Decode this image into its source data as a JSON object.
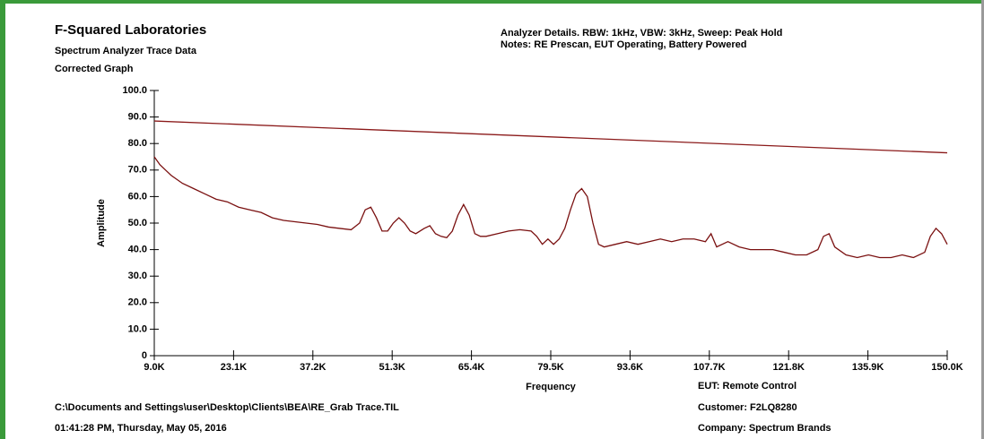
{
  "chart_data": {
    "type": "line",
    "title": "F-Squared Laboratories",
    "subtitle": "Spectrum Analyzer Trace Data",
    "subtitle2": "Corrected Graph",
    "details": "Analyzer Details.  RBW: 1kHz, VBW: 3kHz, Sweep: Peak Hold",
    "notes": "Notes:  RE Prescan, EUT Operating, Battery Powered",
    "xlabel": "Frequency",
    "ylabel": "Amplitude",
    "file": "C:\\Documents and Settings\\user\\Desktop\\Clients\\BEA\\RE_Grab Trace.TIL",
    "datetime": "01:41:28 PM, Thursday, May 05, 2016",
    "eut": "EUT: Remote Control",
    "customer": "Customer: F2LQ8280",
    "company": "Company: Spectrum Brands",
    "xlim": [
      9000,
      150000
    ],
    "ylim": [
      0,
      100
    ],
    "xticks": [
      {
        "value": 9000,
        "label": "9.0K"
      },
      {
        "value": 23100,
        "label": "23.1K"
      },
      {
        "value": 37200,
        "label": "37.2K"
      },
      {
        "value": 51300,
        "label": "51.3K"
      },
      {
        "value": 65400,
        "label": "65.4K"
      },
      {
        "value": 79500,
        "label": "79.5K"
      },
      {
        "value": 93600,
        "label": "93.6K"
      },
      {
        "value": 107700,
        "label": "107.7K"
      },
      {
        "value": 121800,
        "label": "121.8K"
      },
      {
        "value": 135900,
        "label": "135.9K"
      },
      {
        "value": 150000,
        "label": "150.0K"
      }
    ],
    "yticks": [
      0,
      {
        "value": 10,
        "label": "10.0"
      },
      {
        "value": 20,
        "label": "20.0"
      },
      {
        "value": 30,
        "label": "30.0"
      },
      {
        "value": 40,
        "label": "40.0"
      },
      {
        "value": 50,
        "label": "50.0"
      },
      {
        "value": 60,
        "label": "60.0"
      },
      {
        "value": 70,
        "label": "70.0"
      },
      {
        "value": 80,
        "label": "80.0"
      },
      {
        "value": 90,
        "label": "90.0"
      },
      {
        "value": 100,
        "label": "100.0"
      }
    ],
    "series": [
      {
        "color": "#8b1a1a",
        "x": [
          9000,
          150000
        ],
        "values": [
          88.5,
          76.5
        ]
      },
      {
        "color": "#7a1010",
        "x": [
          9000,
          10000,
          11000,
          12000,
          14000,
          16000,
          18000,
          20000,
          22000,
          24000,
          26000,
          28000,
          30000,
          32000,
          34000,
          36000,
          38000,
          40000,
          42000,
          44000,
          45500,
          46500,
          47500,
          48500,
          49500,
          50500,
          51500,
          52500,
          53500,
          54500,
          55500,
          57000,
          58000,
          59000,
          60000,
          61000,
          62000,
          63000,
          64000,
          65000,
          66000,
          67000,
          68000,
          70000,
          72000,
          74000,
          76000,
          77000,
          78000,
          79000,
          80000,
          81000,
          82000,
          83000,
          84000,
          85000,
          86000,
          87000,
          88000,
          89000,
          91000,
          93000,
          95000,
          97000,
          99000,
          101000,
          103000,
          105000,
          107000,
          108000,
          109000,
          111000,
          113000,
          115000,
          117000,
          119000,
          121000,
          123000,
          125000,
          127000,
          128000,
          129000,
          130000,
          132000,
          134000,
          136000,
          138000,
          140000,
          142000,
          144000,
          146000,
          147000,
          148000,
          149000,
          150000
        ],
        "values": [
          75,
          72,
          70,
          68,
          65,
          63,
          61,
          59,
          58,
          56,
          55,
          54,
          52,
          51,
          50.5,
          50,
          49.5,
          48.5,
          48,
          47.5,
          50,
          55,
          56,
          52,
          47,
          47,
          50,
          52,
          50,
          47,
          46,
          48,
          49,
          46,
          45,
          44.5,
          47,
          53,
          57,
          53,
          46,
          45,
          45,
          46,
          47,
          47.5,
          47,
          45,
          42,
          44,
          42,
          44,
          48,
          55,
          61,
          63,
          60,
          50,
          42,
          41,
          42,
          43,
          42,
          43,
          44,
          43,
          44,
          44,
          43,
          46,
          41,
          43,
          41,
          40,
          40,
          40,
          39,
          38,
          38,
          40,
          45,
          46,
          41,
          38,
          37,
          38,
          37,
          37,
          38,
          37,
          39,
          45,
          48,
          46,
          42
        ]
      }
    ]
  }
}
